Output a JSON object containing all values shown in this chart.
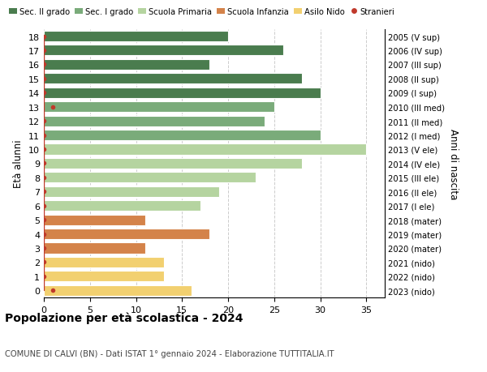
{
  "ages": [
    18,
    17,
    16,
    15,
    14,
    13,
    12,
    11,
    10,
    9,
    8,
    7,
    6,
    5,
    4,
    3,
    2,
    1,
    0
  ],
  "years": [
    "2005 (V sup)",
    "2006 (IV sup)",
    "2007 (III sup)",
    "2008 (II sup)",
    "2009 (I sup)",
    "2010 (III med)",
    "2011 (II med)",
    "2012 (I med)",
    "2013 (V ele)",
    "2014 (IV ele)",
    "2015 (III ele)",
    "2016 (II ele)",
    "2017 (I ele)",
    "2018 (mater)",
    "2019 (mater)",
    "2020 (mater)",
    "2021 (nido)",
    "2022 (nido)",
    "2023 (nido)"
  ],
  "values": [
    20,
    26,
    18,
    28,
    30,
    25,
    24,
    30,
    35,
    28,
    23,
    19,
    17,
    11,
    18,
    11,
    13,
    13,
    16
  ],
  "stranieri_vals": [
    0,
    0,
    0,
    0,
    0,
    1,
    0,
    0,
    0,
    0,
    0,
    0,
    0,
    0,
    0,
    0,
    0,
    0,
    1
  ],
  "colors": [
    "#4a7c4e",
    "#4a7c4e",
    "#4a7c4e",
    "#4a7c4e",
    "#4a7c4e",
    "#7aab7a",
    "#7aab7a",
    "#7aab7a",
    "#b5d4a0",
    "#b5d4a0",
    "#b5d4a0",
    "#b5d4a0",
    "#b5d4a0",
    "#d4834a",
    "#d4834a",
    "#d4834a",
    "#f2d070",
    "#f2d070",
    "#f2d070"
  ],
  "legend_labels": [
    "Sec. II grado",
    "Sec. I grado",
    "Scuola Primaria",
    "Scuola Infanzia",
    "Asilo Nido",
    "Stranieri"
  ],
  "legend_colors": [
    "#4a7c4e",
    "#7aab7a",
    "#b5d4a0",
    "#d4834a",
    "#f2d070",
    "#c0392b"
  ],
  "title": "Popolazione per età scolastica - 2024",
  "subtitle": "COMUNE DI CALVI (BN) - Dati ISTAT 1° gennaio 2024 - Elaborazione TUTTITALIA.IT",
  "ylabel": "Età alunni",
  "right_ylabel": "Anni di nascita",
  "xlim": [
    0,
    37
  ],
  "background_color": "#ffffff",
  "grid_color": "#cccccc",
  "stranieri_color": "#c0392b"
}
